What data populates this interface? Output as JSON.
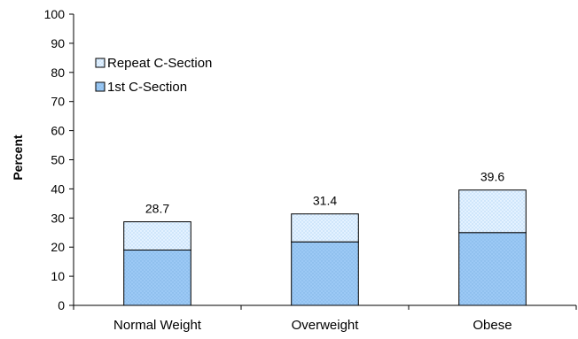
{
  "chart_data": {
    "type": "bar",
    "stacked": true,
    "categories": [
      "Normal Weight",
      "Overweight",
      "Obese"
    ],
    "series": [
      {
        "name": "1st C-Section",
        "values": [
          19.0,
          21.8,
          25.0
        ],
        "color": "#99ccff",
        "pattern": "dense-dots"
      },
      {
        "name": "Repeat C-Section",
        "values": [
          9.7,
          9.6,
          14.6
        ],
        "color": "#d6ecff",
        "pattern": "sparse-dots"
      }
    ],
    "totals": [
      "28.7",
      "31.4",
      "39.6"
    ],
    "ylabel": "Percent",
    "xlabel": "",
    "title": "",
    "ylim": [
      0,
      100
    ],
    "yticks": [
      "0",
      "10",
      "20",
      "30",
      "40",
      "50",
      "60",
      "70",
      "80",
      "90",
      "100"
    ],
    "grid": false,
    "legend": {
      "placement": "top-left",
      "entries": [
        "Repeat C-Section",
        "1st C-Section"
      ]
    }
  }
}
